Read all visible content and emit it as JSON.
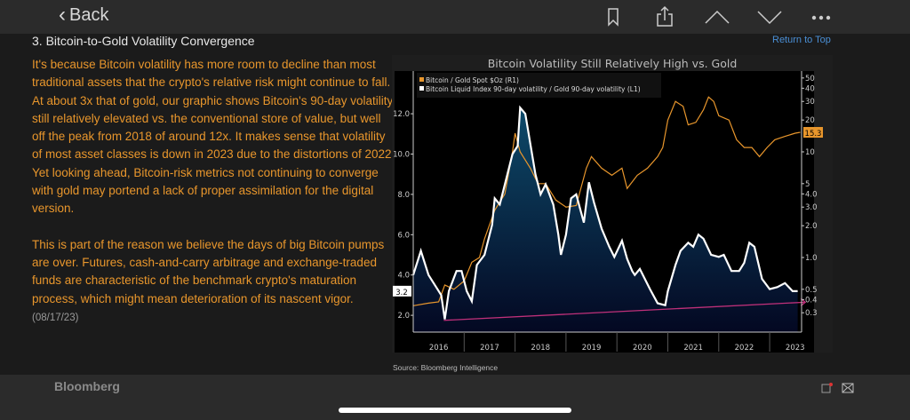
{
  "nav": {
    "back_label": "Back",
    "icons": [
      "bookmark-icon",
      "share-icon",
      "chevron-up-icon",
      "chevron-down-icon",
      "more-icon"
    ]
  },
  "article": {
    "section_title": "3. Bitcoin-to-Gold Volatility Convergence",
    "return_to_top": "Return to Top",
    "paragraphs": [
      "It's because Bitcoin volatility has more room to decline than most traditional assets that the crypto's relative risk might continue to fall. At about 3x that of gold, our graphic shows Bitcoin's 90-day volatility still relatively elevated vs. the conventional store of value, but well off the peak from 2018 of around 12x. It makes sense that volatility of most asset classes is down in 2023 due to the distortions of 2022. Yet looking ahead, Bitcoin-risk metrics not continuing to converge with gold may portend a lack of proper assimilation for the digital version.",
      "This is part of the reason we believe the days of big Bitcoin pumps are over. Futures, cash-and-carry arbitrage and exchange-traded funds are characteristic of the benchmark crypto's maturation process, which might mean deterioration of its nascent vigor."
    ],
    "date": "(08/17/23)",
    "source": "Source: Bloomberg Intelligence"
  },
  "footer": {
    "brand": "Bloomberg"
  },
  "colors": {
    "orange": "#e8962c",
    "white": "#ffffff",
    "trend": "#c0307a",
    "fill_top": "#0d4a6a",
    "fill_bottom": "#040822",
    "link": "#4a8fd6"
  },
  "chart_data": {
    "type": "line",
    "title": "Bitcoin Volatility Still Relatively High vs. Gold",
    "legend": [
      "Bitcoin / Gold Spot $Oz (R1)",
      "Bitcoin Liquid Index 90-day volatility / Gold 90-day volatility (L1)"
    ],
    "legend_placement": "top-left",
    "x_ticks": [
      "2016",
      "2017",
      "2018",
      "2019",
      "2020",
      "2021",
      "2022",
      "2023"
    ],
    "left_axis": {
      "ticks": [
        "2.0",
        "4.0",
        "6.0",
        "8.0",
        "10.0",
        "12.0"
      ],
      "last_value": "3.2",
      "range": [
        1.15,
        13.5
      ]
    },
    "right_axis": {
      "scale": "log",
      "ticks": [
        "50",
        "40",
        "30",
        "20",
        "10",
        "5",
        "4.0",
        "3.0",
        "2.0",
        "1.0",
        "0.5",
        "0.4",
        "0.3"
      ],
      "last_value": "15.3",
      "range": [
        0.22,
        55
      ]
    },
    "series": [
      {
        "name": "Bitcoin Liquid Index 90-day volatility / Gold 90-day volatility (L1)",
        "axis": "left",
        "points": [
          [
            2016.0,
            4.0
          ],
          [
            2016.15,
            5.2
          ],
          [
            2016.3,
            4.0
          ],
          [
            2016.45,
            3.4
          ],
          [
            2016.55,
            3.0
          ],
          [
            2016.62,
            1.8
          ],
          [
            2016.7,
            3.2
          ],
          [
            2016.85,
            4.2
          ],
          [
            2016.95,
            4.2
          ],
          [
            2017.05,
            3.2
          ],
          [
            2017.15,
            2.7
          ],
          [
            2017.25,
            4.5
          ],
          [
            2017.4,
            5.0
          ],
          [
            2017.55,
            6.5
          ],
          [
            2017.6,
            7.8
          ],
          [
            2017.7,
            7.5
          ],
          [
            2017.85,
            9.0
          ],
          [
            2017.95,
            10.0
          ],
          [
            2018.05,
            10.4
          ],
          [
            2018.1,
            12.3
          ],
          [
            2018.2,
            12.0
          ],
          [
            2018.3,
            10.5
          ],
          [
            2018.4,
            9.0
          ],
          [
            2018.5,
            8.0
          ],
          [
            2018.6,
            8.5
          ],
          [
            2018.75,
            7.5
          ],
          [
            2018.85,
            6.0
          ],
          [
            2018.9,
            5.0
          ],
          [
            2019.0,
            6.0
          ],
          [
            2019.1,
            7.8
          ],
          [
            2019.2,
            8.0
          ],
          [
            2019.35,
            6.6
          ],
          [
            2019.45,
            8.6
          ],
          [
            2019.55,
            7.6
          ],
          [
            2019.7,
            6.3
          ],
          [
            2019.85,
            5.4
          ],
          [
            2019.95,
            4.9
          ],
          [
            2020.1,
            5.7
          ],
          [
            2020.2,
            4.8
          ],
          [
            2020.3,
            4.2
          ],
          [
            2020.35,
            4.0
          ],
          [
            2020.45,
            4.3
          ],
          [
            2020.55,
            3.8
          ],
          [
            2020.65,
            3.3
          ],
          [
            2020.8,
            2.6
          ],
          [
            2020.95,
            2.5
          ],
          [
            2021.0,
            3.2
          ],
          [
            2021.15,
            4.5
          ],
          [
            2021.25,
            5.2
          ],
          [
            2021.4,
            5.6
          ],
          [
            2021.5,
            5.4
          ],
          [
            2021.6,
            6.0
          ],
          [
            2021.7,
            5.8
          ],
          [
            2021.85,
            5.0
          ],
          [
            2022.0,
            4.9
          ],
          [
            2022.1,
            5.0
          ],
          [
            2022.25,
            4.2
          ],
          [
            2022.4,
            4.2
          ],
          [
            2022.5,
            4.6
          ],
          [
            2022.6,
            5.6
          ],
          [
            2022.7,
            5.4
          ],
          [
            2022.85,
            3.8
          ],
          [
            2023.0,
            3.3
          ],
          [
            2023.15,
            3.4
          ],
          [
            2023.3,
            3.6
          ],
          [
            2023.45,
            3.2
          ],
          [
            2023.55,
            3.2
          ]
        ]
      },
      {
        "name": "Bitcoin / Gold Spot $Oz (R1)",
        "axis": "right",
        "points": [
          [
            2016.0,
            0.35
          ],
          [
            2016.3,
            0.37
          ],
          [
            2016.5,
            0.38
          ],
          [
            2016.62,
            0.55
          ],
          [
            2016.8,
            0.5
          ],
          [
            2017.0,
            0.6
          ],
          [
            2017.15,
            0.9
          ],
          [
            2017.3,
            1.0
          ],
          [
            2017.4,
            1.5
          ],
          [
            2017.6,
            2.8
          ],
          [
            2017.8,
            4
          ],
          [
            2017.95,
            10
          ],
          [
            2018.0,
            15
          ],
          [
            2018.1,
            10
          ],
          [
            2018.3,
            7
          ],
          [
            2018.45,
            5
          ],
          [
            2018.6,
            5
          ],
          [
            2018.8,
            3.5
          ],
          [
            2019.0,
            3.0
          ],
          [
            2019.2,
            3.1
          ],
          [
            2019.4,
            7
          ],
          [
            2019.5,
            9
          ],
          [
            2019.7,
            7
          ],
          [
            2019.9,
            6
          ],
          [
            2020.1,
            7
          ],
          [
            2020.2,
            4.5
          ],
          [
            2020.4,
            6
          ],
          [
            2020.6,
            7
          ],
          [
            2020.8,
            9
          ],
          [
            2020.9,
            11
          ],
          [
            2021.0,
            20
          ],
          [
            2021.15,
            30
          ],
          [
            2021.3,
            27
          ],
          [
            2021.4,
            18
          ],
          [
            2021.55,
            19
          ],
          [
            2021.7,
            25
          ],
          [
            2021.8,
            33
          ],
          [
            2021.9,
            30
          ],
          [
            2022.0,
            22
          ],
          [
            2022.2,
            20
          ],
          [
            2022.35,
            13
          ],
          [
            2022.5,
            11
          ],
          [
            2022.65,
            11
          ],
          [
            2022.8,
            9
          ],
          [
            2022.95,
            11
          ],
          [
            2023.1,
            13
          ],
          [
            2023.3,
            14
          ],
          [
            2023.5,
            15
          ],
          [
            2023.6,
            15.3
          ]
        ]
      },
      {
        "name": "trend",
        "axis": "left",
        "points": [
          [
            2016.6,
            1.75
          ],
          [
            2023.7,
            2.65
          ]
        ]
      }
    ]
  }
}
